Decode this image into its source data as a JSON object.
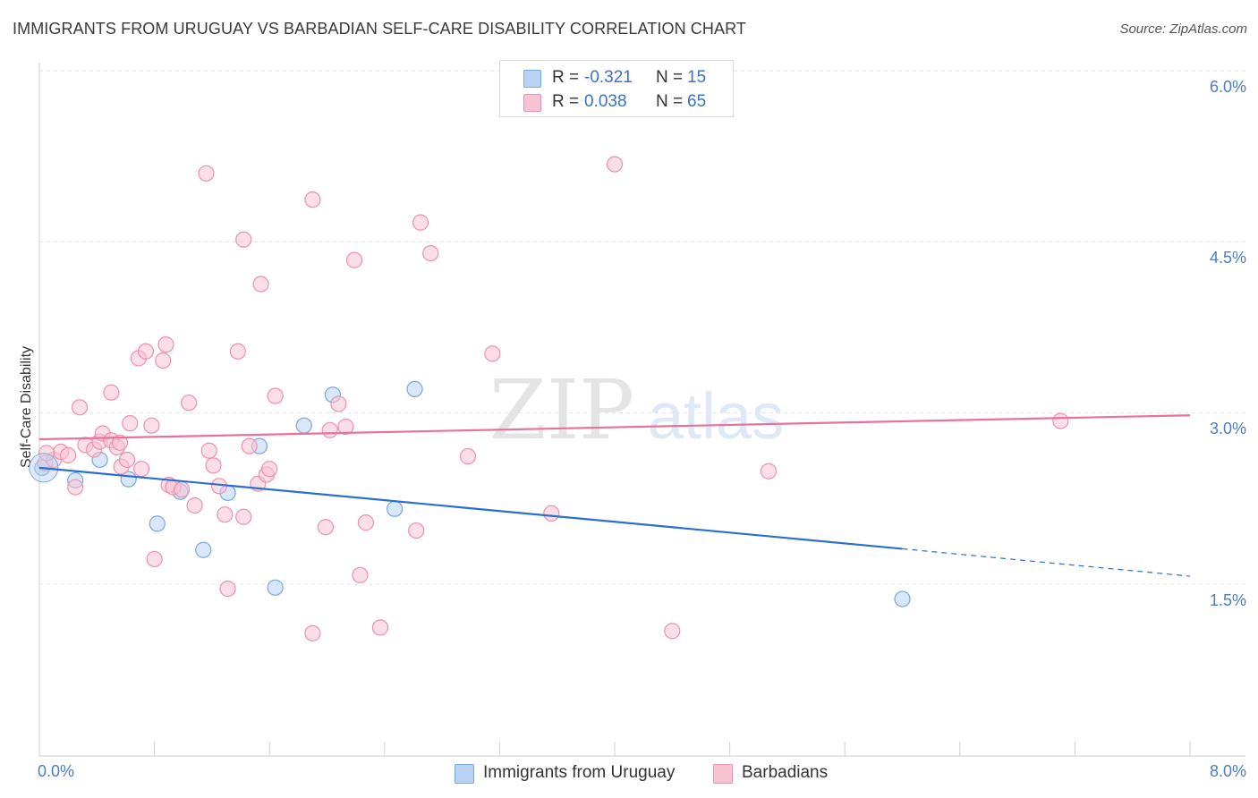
{
  "title": "IMMIGRANTS FROM URUGUAY VS BARBADIAN SELF-CARE DISABILITY CORRELATION CHART",
  "source": "Source: ZipAtlas.com",
  "watermark": {
    "zip": "ZIP",
    "atlas": "atlas"
  },
  "colors": {
    "blue_fill": "#b9d3f5",
    "blue_stroke": "#7aa6e0",
    "blue_line": "#2a6fd0",
    "pink_fill": "#f7c3d2",
    "pink_stroke": "#ea92ae",
    "pink_line": "#e8729a",
    "grid": "#e2e2e2",
    "axis_tick": "#4a7cc7"
  },
  "legend": {
    "rows": [
      {
        "r_label": "R = ",
        "r_value": "-0.321",
        "n_label": "N = ",
        "n_value": "15",
        "color": "#b9d3f5",
        "stroke": "#7aa6e0"
      },
      {
        "r_label": "R = ",
        "r_value": "0.038",
        "n_label": "N = ",
        "n_value": "65",
        "color": "#f7c3d2",
        "stroke": "#ea92ae"
      }
    ]
  },
  "chart_data": {
    "type": "scatter",
    "title": "IMMIGRANTS FROM URUGUAY VS BARBADIAN SELF-CARE DISABILITY CORRELATION CHART",
    "xlabel": "",
    "ylabel": "Self-Care Disability",
    "xlim": [
      0,
      8
    ],
    "ylim": [
      0,
      6.2
    ],
    "x_tick_labels": [
      "0.0%",
      "8.0%"
    ],
    "y_tick_labels": [
      "6.0%",
      "4.5%",
      "3.0%",
      "1.5%"
    ],
    "y_ticks": [
      6.0,
      4.5,
      3.0,
      1.5
    ],
    "x_minor_ticks": [
      0.8,
      1.6,
      2.4,
      3.2,
      4.0,
      4.8,
      5.6,
      6.4,
      7.2,
      8.0
    ],
    "series": [
      {
        "name": "Immigrants from Uruguay",
        "color": "#b9d3f5",
        "stroke": "#7aa6e0",
        "points": [
          [
            0.02,
            2.52
          ],
          [
            0.25,
            2.41
          ],
          [
            0.42,
            2.59
          ],
          [
            0.62,
            2.42
          ],
          [
            0.82,
            2.03
          ],
          [
            0.98,
            2.31
          ],
          [
            1.14,
            1.8
          ],
          [
            1.31,
            2.3
          ],
          [
            1.53,
            2.71
          ],
          [
            1.64,
            1.47
          ],
          [
            1.84,
            2.89
          ],
          [
            2.04,
            3.16
          ],
          [
            2.47,
            2.16
          ],
          [
            2.61,
            3.21
          ],
          [
            6.0,
            1.37
          ]
        ],
        "trend": {
          "x0": 0.0,
          "y0": 2.52,
          "x1": 6.0,
          "y1": 1.81,
          "dash_to_x": 8.0,
          "dash_to_y": 1.57
        }
      },
      {
        "name": "Barbadians",
        "color": "#f7c3d2",
        "stroke": "#ea92ae",
        "points": [
          [
            0.04,
            2.56
          ],
          [
            0.1,
            2.59
          ],
          [
            0.15,
            2.66
          ],
          [
            0.25,
            2.35
          ],
          [
            0.28,
            3.05
          ],
          [
            0.32,
            2.72
          ],
          [
            0.2,
            2.63
          ],
          [
            0.38,
            2.68
          ],
          [
            0.42,
            2.75
          ],
          [
            0.44,
            2.82
          ],
          [
            0.5,
            2.76
          ],
          [
            0.54,
            2.7
          ],
          [
            0.5,
            3.18
          ],
          [
            0.56,
            2.74
          ],
          [
            0.57,
            2.53
          ],
          [
            0.61,
            2.59
          ],
          [
            0.63,
            2.91
          ],
          [
            0.69,
            3.48
          ],
          [
            0.71,
            2.51
          ],
          [
            0.74,
            3.54
          ],
          [
            0.78,
            2.89
          ],
          [
            0.8,
            1.72
          ],
          [
            0.86,
            3.46
          ],
          [
            0.88,
            3.6
          ],
          [
            0.9,
            2.37
          ],
          [
            0.93,
            2.35
          ],
          [
            0.99,
            2.33
          ],
          [
            1.04,
            3.09
          ],
          [
            1.08,
            2.19
          ],
          [
            1.16,
            5.1
          ],
          [
            1.18,
            2.67
          ],
          [
            1.21,
            2.54
          ],
          [
            1.25,
            2.36
          ],
          [
            1.29,
            2.11
          ],
          [
            1.31,
            1.46
          ],
          [
            1.38,
            3.54
          ],
          [
            1.42,
            2.09
          ],
          [
            1.42,
            4.52
          ],
          [
            1.46,
            2.71
          ],
          [
            1.52,
            2.38
          ],
          [
            1.54,
            4.13
          ],
          [
            1.58,
            2.46
          ],
          [
            1.6,
            2.51
          ],
          [
            1.64,
            3.15
          ],
          [
            1.9,
            4.87
          ],
          [
            2.02,
            2.85
          ],
          [
            2.08,
            3.08
          ],
          [
            2.13,
            2.88
          ],
          [
            1.99,
            2.0
          ],
          [
            2.19,
            4.34
          ],
          [
            2.23,
            1.58
          ],
          [
            2.27,
            2.04
          ],
          [
            2.37,
            1.12
          ],
          [
            1.9,
            1.07
          ],
          [
            2.62,
            1.97
          ],
          [
            2.65,
            4.67
          ],
          [
            2.72,
            4.4
          ],
          [
            2.98,
            2.62
          ],
          [
            3.15,
            3.52
          ],
          [
            3.56,
            2.12
          ],
          [
            4.0,
            5.18
          ],
          [
            4.4,
            1.09
          ],
          [
            5.07,
            2.49
          ],
          [
            7.1,
            2.93
          ],
          [
            0.05,
            2.65
          ]
        ],
        "trend": {
          "x0": 0.0,
          "y0": 2.77,
          "x1": 8.0,
          "y1": 2.98
        }
      }
    ]
  },
  "bottom_legend": {
    "items": [
      {
        "label": "Immigrants from Uruguay",
        "color": "#b9d3f5",
        "stroke": "#7aa6e0"
      },
      {
        "label": "Barbadians",
        "color": "#f7c3d2",
        "stroke": "#ea92ae"
      }
    ]
  }
}
